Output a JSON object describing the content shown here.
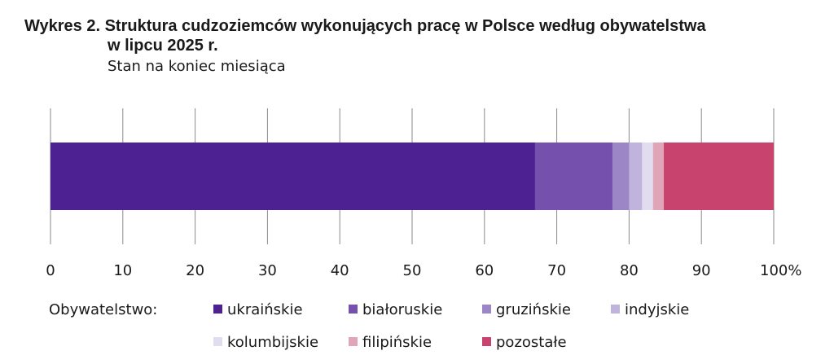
{
  "title_line1": "Wykres 2. Struktura cudzoziemców wykonujących pracę w Polsce według obywatelstwa",
  "title_line2": "w lipcu 2025 r.",
  "subtitle": "Stan na koniec miesiąca",
  "chart_data": {
    "type": "bar",
    "orientation": "horizontal-stacked-100",
    "xlim": [
      0,
      100
    ],
    "ticks": [
      "0",
      "10",
      "20",
      "30",
      "40",
      "50",
      "60",
      "70",
      "80",
      "90",
      "100%"
    ],
    "grid": true,
    "legend_title": "Obywatelstwo:",
    "legend_position": "bottom",
    "series": [
      {
        "name": "ukraińskie",
        "value": 67.0,
        "color": "#4e2193"
      },
      {
        "name": "białoruskie",
        "value": 10.7,
        "color": "#7550ad"
      },
      {
        "name": "gruzińskie",
        "value": 2.3,
        "color": "#9c86c6"
      },
      {
        "name": "indyjskie",
        "value": 1.8,
        "color": "#c0b4dd"
      },
      {
        "name": "kolumbijskie",
        "value": 1.5,
        "color": "#e1dcef"
      },
      {
        "name": "filipińskie",
        "value": 1.5,
        "color": "#e1a5b8"
      },
      {
        "name": "pozostałe",
        "value": 15.2,
        "color": "#c8446f"
      }
    ]
  }
}
